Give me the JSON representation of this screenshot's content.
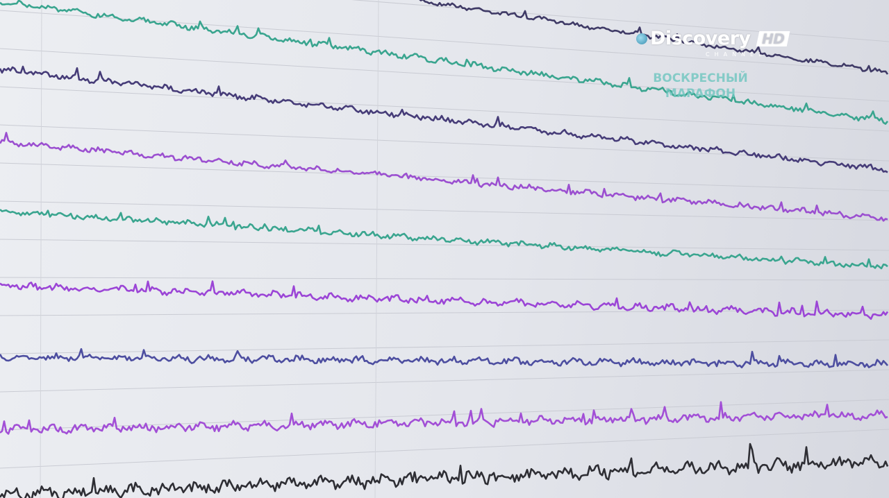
{
  "traces": [
    {
      "color": "#3f3a66"
    },
    {
      "color": "#3aa58f"
    },
    {
      "color": "#463c78"
    },
    {
      "color": "#9b4fd0"
    },
    {
      "color": "#3aa58f"
    },
    {
      "color": "#9b45d6"
    },
    {
      "color": "#4d4ea0"
    },
    {
      "color": "#a24fd6"
    },
    {
      "color": "#2e2e34"
    }
  ],
  "logo": {
    "brand": "Discovery",
    "badge": "HD",
    "sub": "CHANNEL"
  },
  "promo": {
    "line1": "ВОСКРЕСНЫЙ",
    "line2": "МАРАФОН"
  }
}
